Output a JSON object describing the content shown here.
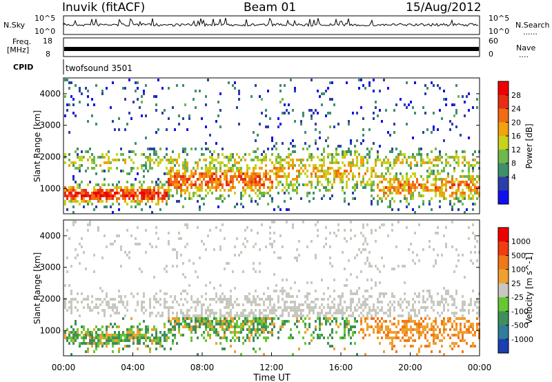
{
  "header": {
    "station": "Inuvik (fitACF)",
    "beam": "Beam 01",
    "date": "15/Aug/2012"
  },
  "panel_labels": {
    "nsky": "N.Sky",
    "nsky_top": "10^5",
    "nsky_bottom": "10^0",
    "nsearch": "N.Search",
    "nsearch_top": "10^5",
    "nsearch_bottom": "10^0",
    "freq_line1": "Freq.",
    "freq_line2": "[MHz]",
    "freq_top": "18",
    "freq_bottom": "8",
    "nave": "Nave",
    "nave_top": "60",
    "nave_bottom": "0",
    "cpid": "CPID",
    "cpid_value": "twofsound 3501"
  },
  "chart_data": [
    {
      "type": "heatmap",
      "title": "",
      "ylabel": "Slant Range [km]",
      "xlabel": "",
      "xlim": [
        0,
        24
      ],
      "ylim": [
        200,
        4500
      ],
      "yticks": [
        "1000",
        "2000",
        "3000",
        "4000"
      ],
      "colorbar_label": "Power [dB]",
      "colorbar_ticks": [
        "4",
        "8",
        "12",
        "16",
        "20",
        "24",
        "28"
      ],
      "colorbar_colors": [
        "#1010ee",
        "#2b3fa8",
        "#3f8f6a",
        "#6fb84a",
        "#c8d21c",
        "#f2a20c",
        "#f26b14",
        "#e62e14",
        "#f00000"
      ],
      "echo_bands_km": [
        {
          "from": 0,
          "to": 6,
          "center": 850,
          "width": 300,
          "level": 0.85
        },
        {
          "from": 6,
          "to": 12,
          "center": 1300,
          "width": 500,
          "level": 0.7
        },
        {
          "from": 12,
          "to": 18,
          "center": 1600,
          "width": 700,
          "level": 0.5
        },
        {
          "from": 18,
          "to": 24,
          "center": 1100,
          "width": 500,
          "level": 0.6
        }
      ]
    },
    {
      "type": "heatmap",
      "title": "",
      "ylabel": "Slant Range [km]",
      "xlabel": "Time UT",
      "xlim": [
        0,
        24
      ],
      "ylim": [
        200,
        4500
      ],
      "xticks": [
        "00:00",
        "04:00",
        "08:00",
        "12:00",
        "16:00",
        "20:00",
        "00:00"
      ],
      "yticks": [
        "1000",
        "2000",
        "3000",
        "4000"
      ],
      "colorbar_label": "Velocity [m s^-1]",
      "colorbar_ticks": [
        "1000",
        "500",
        "100",
        "25",
        "-25",
        "-100",
        "-500",
        "-1000"
      ],
      "colorbar_colors": [
        "#1a3fb0",
        "#2f7d9a",
        "#3e8f5a",
        "#66c830",
        "#c8c8c0",
        "#f0a030",
        "#f07818",
        "#f03c10",
        "#f00000"
      ]
    }
  ]
}
